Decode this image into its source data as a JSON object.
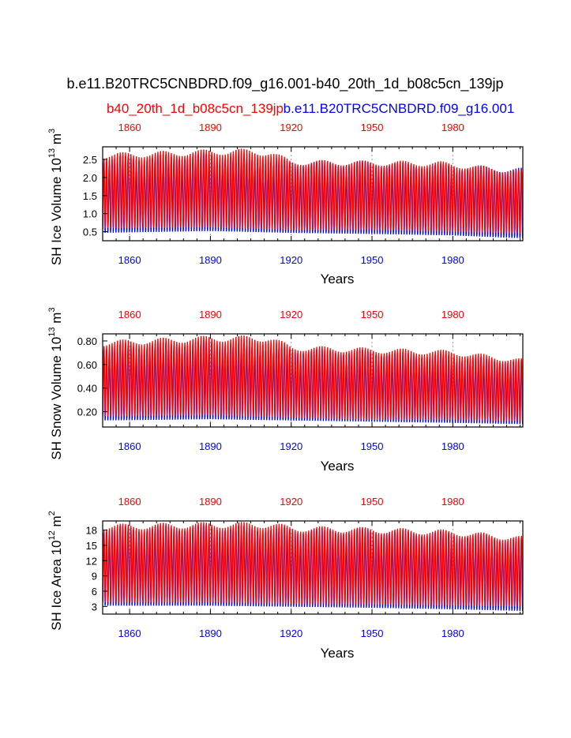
{
  "title": "b.e11.B20TRC5CNBDRD.f09_g16.001-b40_20th_1d_b08c5cn_139jp",
  "legend": {
    "red_label": "b40_20th_1d_b08c5cn_139jp",
    "blue_label": "b.e11.B20TRC5CNBDRD.f09_g16.001"
  },
  "colors": {
    "red": "#ff0000",
    "blue": "#0000ff",
    "frame": "#000000",
    "grid": "#999999"
  },
  "chart_data": [
    {
      "type": "line",
      "ylabel": "SH Ice Volume 10",
      "ylabel_exp": "13",
      "ylabel_unit": " m",
      "ylabel_unit_exp": "3",
      "xlabel": "Years",
      "xlim": [
        1850,
        2006
      ],
      "ylim": [
        0.25,
        2.85
      ],
      "yticks": [
        0.5,
        1.0,
        1.5,
        2.0,
        2.5
      ],
      "ytick_labels": [
        "0.5",
        "1.0",
        "1.5",
        "2.0",
        "2.5"
      ],
      "xticks_bottom": [
        "1860",
        "1890",
        "1920",
        "1950",
        "1980"
      ],
      "xticks_top": [
        "1860",
        "1890",
        "1920",
        "1950",
        "1980"
      ],
      "series": [
        {
          "name": "b40_20th_1d_b08c5cn_139jp",
          "color": "red",
          "max_trend": [
            [
              1850,
              2.6
            ],
            [
              1890,
              2.7
            ],
            [
              1900,
              2.72
            ],
            [
              1912,
              2.68
            ],
            [
              1920,
              2.42
            ],
            [
              1950,
              2.4
            ],
            [
              1975,
              2.38
            ],
            [
              2006,
              2.15
            ]
          ],
          "min_trend": [
            [
              1850,
              0.6
            ],
            [
              1890,
              0.62
            ],
            [
              1920,
              0.55
            ],
            [
              1950,
              0.55
            ],
            [
              1980,
              0.5
            ],
            [
              2006,
              0.45
            ]
          ]
        },
        {
          "name": "b.e11.B20TRC5CNBDRD.f09_g16.001",
          "color": "blue",
          "max_trend": [
            [
              1850,
              2.5
            ],
            [
              1890,
              2.6
            ],
            [
              1920,
              2.4
            ],
            [
              1950,
              2.38
            ],
            [
              1980,
              2.3
            ],
            [
              2006,
              2.2
            ]
          ],
          "min_trend": [
            [
              1850,
              0.45
            ],
            [
              1890,
              0.5
            ],
            [
              1920,
              0.45
            ],
            [
              1950,
              0.42
            ],
            [
              1980,
              0.38
            ],
            [
              2006,
              0.3
            ]
          ]
        }
      ]
    },
    {
      "type": "line",
      "ylabel": "SH Snow Volume 10",
      "ylabel_exp": "13",
      "ylabel_unit": " m",
      "ylabel_unit_exp": "3",
      "xlabel": "Years",
      "xlim": [
        1850,
        2006
      ],
      "ylim": [
        0.07,
        0.86
      ],
      "yticks": [
        0.2,
        0.4,
        0.6,
        0.8
      ],
      "ytick_labels": [
        "0.20",
        "0.40",
        "0.60",
        "0.80"
      ],
      "xticks_bottom": [
        "1860",
        "1890",
        "1920",
        "1950",
        "1980"
      ],
      "xticks_top": [
        "1860",
        "1890",
        "1920",
        "1950",
        "1980"
      ],
      "series": [
        {
          "name": "b40_20th_1d_b08c5cn_139jp",
          "color": "red",
          "max_trend": [
            [
              1850,
              0.78
            ],
            [
              1890,
              0.82
            ],
            [
              1912,
              0.82
            ],
            [
              1920,
              0.74
            ],
            [
              1950,
              0.72
            ],
            [
              1980,
              0.7
            ],
            [
              2006,
              0.63
            ]
          ],
          "min_trend": [
            [
              1850,
              0.16
            ],
            [
              1890,
              0.17
            ],
            [
              1920,
              0.15
            ],
            [
              1950,
              0.13
            ],
            [
              1980,
              0.13
            ],
            [
              2006,
              0.12
            ]
          ]
        },
        {
          "name": "b.e11.B20TRC5CNBDRD.f09_g16.001",
          "color": "blue",
          "max_trend": [
            [
              1850,
              0.74
            ],
            [
              1890,
              0.78
            ],
            [
              1920,
              0.72
            ],
            [
              1950,
              0.7
            ],
            [
              1980,
              0.66
            ],
            [
              2006,
              0.62
            ]
          ],
          "min_trend": [
            [
              1850,
              0.12
            ],
            [
              1890,
              0.13
            ],
            [
              1920,
              0.12
            ],
            [
              1950,
              0.11
            ],
            [
              1980,
              0.1
            ],
            [
              2006,
              0.09
            ]
          ]
        }
      ]
    },
    {
      "type": "line",
      "ylabel": "SH Ice Area 10",
      "ylabel_exp": "12",
      "ylabel_unit": " m",
      "ylabel_unit_exp": "2",
      "xlabel": "Years",
      "xlim": [
        1850,
        2006
      ],
      "ylim": [
        1.5,
        19.8
      ],
      "yticks": [
        3,
        6,
        9,
        12,
        15,
        18
      ],
      "ytick_labels": [
        "3",
        "6",
        "9",
        "12",
        "15",
        "18"
      ],
      "xticks_bottom": [
        "1860",
        "1890",
        "1920",
        "1950",
        "1980"
      ],
      "xticks_top": [
        "1860",
        "1890",
        "1920",
        "1950",
        "1980"
      ],
      "series": [
        {
          "name": "b40_20th_1d_b08c5cn_139jp",
          "color": "red",
          "max_trend": [
            [
              1850,
              18.6
            ],
            [
              1890,
              19.0
            ],
            [
              1912,
              19.0
            ],
            [
              1920,
              18.3
            ],
            [
              1950,
              18.0
            ],
            [
              1980,
              17.5
            ],
            [
              2006,
              16.3
            ]
          ],
          "min_trend": [
            [
              1850,
              3.8
            ],
            [
              1890,
              3.8
            ],
            [
              1920,
              3.5
            ],
            [
              1950,
              3.4
            ],
            [
              1980,
              3.2
            ],
            [
              2006,
              3.0
            ]
          ]
        },
        {
          "name": "b.e11.B20TRC5CNBDRD.f09_g16.001",
          "color": "blue",
          "max_trend": [
            [
              1850,
              18.2
            ],
            [
              1890,
              18.6
            ],
            [
              1920,
              18.0
            ],
            [
              1950,
              17.8
            ],
            [
              1980,
              17.2
            ],
            [
              2006,
              16.0
            ]
          ],
          "min_trend": [
            [
              1850,
              3.0
            ],
            [
              1890,
              3.0
            ],
            [
              1920,
              2.8
            ],
            [
              1950,
              2.6
            ],
            [
              1980,
              2.3
            ],
            [
              2006,
              2.0
            ]
          ]
        }
      ]
    }
  ]
}
